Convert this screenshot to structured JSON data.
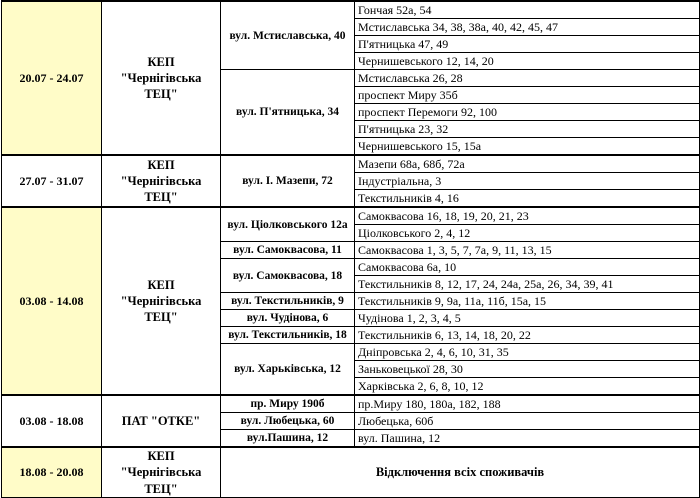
{
  "colors": {
    "highlight": "#fffcc8",
    "border": "#000000",
    "text": "#000000"
  },
  "table": {
    "type": "table",
    "description_note": "",
    "sections": [
      {
        "date": "20.07 - 24.07",
        "highlighted": true,
        "company": "КЕП \"Чернігівська ТЕЦ\"",
        "groups": [
          {
            "street": "вул. Мстиславська, 40",
            "addresses": [
              "Гончая 52а, 54",
              "Мстиславська 34, 38, 38а, 40, 42, 45, 47",
              "П'ятницька 47, 49",
              "Чернишевського 12, 14, 20"
            ]
          },
          {
            "street": "вул. П'ятницька, 34",
            "addresses": [
              "Мстиславська 26, 28",
              "проспект Миру 35б",
              "проспект Перемоги 92, 100",
              "П'ятницька 23, 32",
              "Чернишевського 15, 15а"
            ]
          }
        ]
      },
      {
        "date": "27.07 - 31.07",
        "highlighted": false,
        "company": "КЕП \"Чернігівська ТЕЦ\"",
        "groups": [
          {
            "street": "вул. І. Мазепи, 72",
            "addresses": [
              "Мазепи 68а, 68б, 72а",
              "Індустріальна, 3",
              "Текстильників 4, 16"
            ]
          }
        ]
      },
      {
        "date": "03.08 - 14.08",
        "highlighted": true,
        "company": "КЕП \"Чернігівська ТЕЦ\"",
        "groups": [
          {
            "street": "вул. Ціолковського 12а",
            "addresses": [
              "Самоквасова 16, 18, 19, 20, 21, 23",
              "Ціолковського 2, 4, 12"
            ]
          },
          {
            "street": "вул. Самоквасова, 11",
            "addresses": [
              "Самоквасова 1, 3, 5, 7, 7а, 9, 11, 13, 15"
            ]
          },
          {
            "street": "вул. Самоквасова, 18",
            "addresses": [
              "Самоквасова 6а, 10",
              "Текстильників 8, 12, 17, 24, 24а, 25а, 26, 34, 39, 41"
            ]
          },
          {
            "street": "вул. Текстильників, 9",
            "addresses": [
              "Текстильників 9, 9а, 11а, 11б, 15а, 15"
            ]
          },
          {
            "street": "вул. Чудінова, 6",
            "addresses": [
              "Чудінова 1, 2, 3, 4, 5"
            ]
          },
          {
            "street": "вул. Текстильників, 18",
            "addresses": [
              "Текстильників 6, 13, 14, 18, 20, 22"
            ]
          },
          {
            "street": "вул. Харьківська, 12",
            "addresses": [
              "Дніпровська 2, 4, 6, 10, 31, 35",
              "Заньковецької 28, 30",
              "Харківська 2, 6, 8, 10, 12"
            ]
          }
        ]
      },
      {
        "date": "03.08 - 18.08",
        "highlighted": false,
        "company": "ПАТ \"ОТКЕ\"",
        "groups": [
          {
            "street": "пр. Миру 190б",
            "addresses": [
              "пр.Миру 180, 180а, 182, 188"
            ]
          },
          {
            "street": "вул. Любецька, 60",
            "addresses": [
              "Любецька, 60б"
            ]
          },
          {
            "street": "вул.Пашина, 12",
            "addresses": [
              "вул. Пашина, 12"
            ]
          }
        ]
      },
      {
        "date": "18.08 - 20.08",
        "highlighted": true,
        "company": "КЕП \"Чернігівська ТЕЦ\"",
        "note": "Відключення всіх споживачів"
      }
    ]
  }
}
